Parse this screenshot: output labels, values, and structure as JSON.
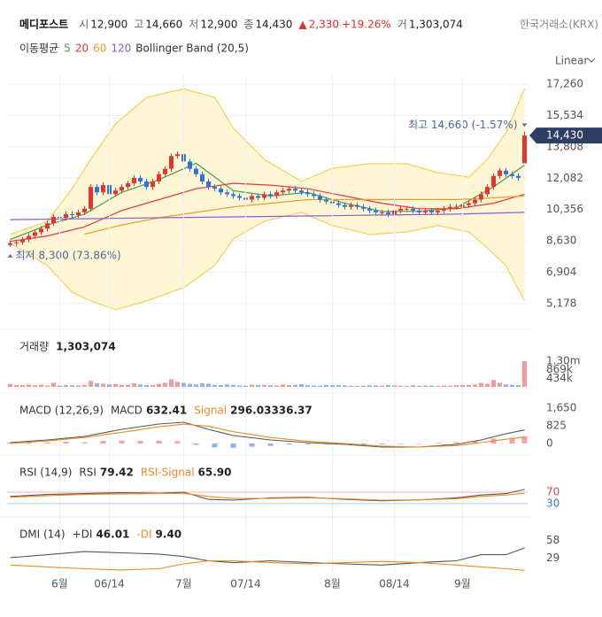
{
  "header": {
    "name": "메디포스트",
    "quotes": [
      {
        "label": "시",
        "value": "12,900"
      },
      {
        "label": "고",
        "value": "14,660"
      },
      {
        "label": "저",
        "value": "12,900"
      },
      {
        "label": "종",
        "value": "14,430"
      }
    ],
    "change": {
      "arrow": "▲",
      "value": "2,330",
      "percent": "+19.26%"
    },
    "volume": {
      "label": "거",
      "value": "1,303,074"
    },
    "exchange": "한국거래소(KRX)"
  },
  "chart_data": [
    {
      "type": "candlestick",
      "scale": "Linear",
      "grid": true,
      "legend_title": "이동평균",
      "xlim": [
        -0.5,
        83.5
      ],
      "xticks": [
        {
          "value": 8,
          "label": "6월"
        },
        {
          "value": 16,
          "label": "06/14"
        },
        {
          "value": 28,
          "label": "7월"
        },
        {
          "value": 38,
          "label": "07/14"
        },
        {
          "value": 52,
          "label": "8월"
        },
        {
          "value": 62,
          "label": "08/14"
        },
        {
          "value": 73,
          "label": "9월"
        }
      ],
      "ylim": [
        4100,
        17750
      ],
      "yticks": [
        {
          "value": 17260,
          "label": "17,260"
        },
        {
          "value": 15534,
          "label": "15,534"
        },
        {
          "value": 13808,
          "label": "13,808"
        },
        {
          "value": 12082,
          "label": "12,082"
        },
        {
          "value": 10356,
          "label": "10,356"
        },
        {
          "value": 8630,
          "label": "8,630"
        },
        {
          "value": 6904,
          "label": "6,904"
        },
        {
          "value": 5178,
          "label": "5,178"
        }
      ],
      "up_color": "#e8342e",
      "down_color": "#2f73d9",
      "open": [
        8400,
        8500,
        8550,
        8700,
        8900,
        9100,
        9300,
        9600,
        9950,
        9900,
        10100,
        10050,
        10200,
        10400,
        11600,
        11300,
        11700,
        11200,
        11400,
        11600,
        11800,
        12100,
        11900,
        11600,
        11900,
        12300,
        12600,
        13300,
        13400,
        13000,
        12600,
        12300,
        11900,
        11600,
        11500,
        11300,
        11200,
        11100,
        11000,
        10900,
        11100,
        11000,
        11200,
        11100,
        11300,
        11400,
        11500,
        11400,
        11300,
        11200,
        11100,
        10900,
        10800,
        10700,
        10600,
        10500,
        10600,
        10500,
        10400,
        10300,
        10200,
        10200,
        10100,
        10300,
        10400,
        10400,
        10300,
        10200,
        10300,
        10200,
        10300,
        10400,
        10500,
        10500,
        10600,
        10700,
        10900,
        11200,
        11600,
        12200,
        12500,
        12300,
        12200,
        12900
      ],
      "high": [
        8650,
        8700,
        8850,
        9050,
        9250,
        9450,
        9750,
        10100,
        10100,
        10250,
        10250,
        10350,
        10550,
        11750,
        11750,
        11850,
        11850,
        11550,
        11750,
        11950,
        12250,
        12250,
        12050,
        12050,
        12450,
        12750,
        13450,
        13550,
        13550,
        13150,
        12750,
        12450,
        12050,
        11750,
        11650,
        11450,
        11350,
        11250,
        11150,
        11250,
        11250,
        11350,
        11350,
        11450,
        11550,
        11650,
        11650,
        11550,
        11450,
        11350,
        11250,
        11050,
        10950,
        10850,
        10750,
        10750,
        10750,
        10650,
        10550,
        10450,
        10350,
        10350,
        10450,
        10550,
        10550,
        10550,
        10450,
        10450,
        10450,
        10450,
        10550,
        10650,
        10650,
        10750,
        10850,
        11050,
        11350,
        11750,
        12350,
        12650,
        12650,
        12450,
        12350,
        14660
      ],
      "low": [
        8300,
        8350,
        8400,
        8550,
        8750,
        8950,
        9150,
        9450,
        9750,
        9750,
        9900,
        9900,
        10050,
        10250,
        11150,
        11150,
        11050,
        11050,
        11250,
        11450,
        11650,
        11750,
        11450,
        11450,
        11750,
        12150,
        12450,
        13150,
        12850,
        12450,
        12150,
        11750,
        11450,
        11350,
        11150,
        11050,
        10950,
        10850,
        10750,
        10750,
        10850,
        10850,
        10950,
        10950,
        11150,
        11250,
        11250,
        11150,
        11050,
        10950,
        10750,
        10650,
        10550,
        10450,
        10350,
        10350,
        10350,
        10250,
        10150,
        10050,
        10050,
        9950,
        9950,
        10150,
        10250,
        10150,
        10050,
        10050,
        10050,
        10050,
        10150,
        10250,
        10350,
        10350,
        10450,
        10550,
        10750,
        11050,
        11450,
        12050,
        12150,
        12050,
        11950,
        12900
      ],
      "close": [
        8500,
        8550,
        8700,
        8900,
        9100,
        9300,
        9600,
        9950,
        9900,
        10100,
        10050,
        10200,
        10400,
        11600,
        11300,
        11700,
        11200,
        11400,
        11600,
        11800,
        12100,
        11900,
        11600,
        11900,
        12300,
        12600,
        13300,
        13400,
        13000,
        12600,
        12300,
        11900,
        11600,
        11500,
        11300,
        11200,
        11100,
        11000,
        10900,
        11100,
        11000,
        11200,
        11100,
        11300,
        11400,
        11500,
        11400,
        11300,
        11200,
        11100,
        10900,
        10800,
        10700,
        10600,
        10500,
        10600,
        10500,
        10400,
        10300,
        10200,
        10200,
        10100,
        10300,
        10400,
        10400,
        10300,
        10200,
        10300,
        10200,
        10300,
        10400,
        10500,
        10500,
        10600,
        10700,
        10900,
        11200,
        11600,
        12200,
        12500,
        12300,
        12200,
        12100,
        14430
      ],
      "series": [
        {
          "name": "5",
          "color": "#43a047",
          "x": [
            0,
            6,
            12,
            18,
            24,
            30,
            36,
            42,
            48,
            54,
            60,
            66,
            72,
            78,
            83
          ],
          "values": [
            8700,
            9500,
            10100,
            11300,
            12000,
            12900,
            11400,
            11100,
            11300,
            10700,
            10250,
            10250,
            10450,
            11600,
            12800
          ]
        },
        {
          "name": "20",
          "color": "#e53935",
          "x": [
            0,
            6,
            12,
            18,
            24,
            30,
            36,
            42,
            48,
            54,
            60,
            66,
            72,
            78,
            83
          ],
          "values": [
            8600,
            8900,
            9400,
            10300,
            10900,
            11500,
            11800,
            11700,
            11500,
            11100,
            10700,
            10400,
            10400,
            10700,
            11200
          ]
        },
        {
          "name": "60",
          "color": "#f59b23",
          "x": [
            12,
            18,
            24,
            30,
            36,
            42,
            48,
            54,
            60,
            66,
            72,
            78,
            83
          ],
          "values": [
            9000,
            9500,
            9900,
            10200,
            10500,
            10700,
            10900,
            10900,
            10900,
            10900,
            10900,
            11000,
            11100
          ]
        },
        {
          "name": "120",
          "color": "#8e5cd9",
          "x": [
            0,
            12,
            24,
            36,
            48,
            60,
            72,
            83
          ],
          "values": [
            9800,
            9850,
            9900,
            9950,
            10000,
            10050,
            10100,
            10200
          ]
        }
      ],
      "band": {
        "name": "Bollinger Band (20,5)",
        "color": "#f7cf5a",
        "fill": "#fff5cf",
        "x": [
          0,
          6,
          10,
          13,
          17,
          22,
          28,
          33,
          36,
          41,
          47,
          52,
          58,
          64,
          69,
          74,
          77,
          80,
          83
        ],
        "upper": [
          8980,
          9700,
          11500,
          13120,
          15070,
          16530,
          17000,
          16530,
          14830,
          13120,
          11900,
          12630,
          12880,
          12880,
          12390,
          12140,
          13120,
          14580,
          17020
        ],
        "lower": [
          8490,
          7270,
          5800,
          5320,
          4840,
          5320,
          6050,
          7270,
          8740,
          9710,
          10200,
          9470,
          8980,
          9120,
          9470,
          9120,
          8250,
          7270,
          5320
        ]
      },
      "high_label": "최고 14,660 (-1.57%)",
      "low_label": "최저 8,300 (73.86%)",
      "last_price": {
        "value": 14430,
        "label": "14,430"
      }
    },
    {
      "type": "bar",
      "title": "거래량",
      "readout": "1,303,074",
      "grid": false,
      "xlim": [
        -0.5,
        83.5
      ],
      "ylim": [
        0,
        2640000
      ],
      "yticks": [
        {
          "value": 1300000,
          "label": "1.30m"
        },
        {
          "value": 869000,
          "label": "869k"
        },
        {
          "value": 434000,
          "label": "434k"
        }
      ],
      "up_color": "#f49a9a",
      "down_color": "#8fb3ea",
      "values": [
        150000,
        90000,
        100000,
        120000,
        80000,
        110000,
        70000,
        200000,
        60000,
        90000,
        80000,
        70000,
        100000,
        300000,
        180000,
        160000,
        120000,
        140000,
        100000,
        110000,
        180000,
        120000,
        90000,
        100000,
        150000,
        200000,
        380000,
        250000,
        200000,
        150000,
        120000,
        180000,
        160000,
        100000,
        80000,
        120000,
        100000,
        70000,
        60000,
        110000,
        90000,
        100000,
        80000,
        70000,
        120000,
        90000,
        100000,
        130000,
        80000,
        70000,
        60000,
        100000,
        90000,
        80000,
        70000,
        60000,
        50000,
        60000,
        80000,
        70000,
        60000,
        90000,
        70000,
        60000,
        50000,
        80000,
        60000,
        70000,
        60000,
        50000,
        70000,
        60000,
        80000,
        90000,
        100000,
        120000,
        200000,
        150000,
        350000,
        200000,
        120000,
        100000,
        90000,
        1303074
      ]
    },
    {
      "type": "line",
      "title": "MACD (12,26,9)",
      "grid": false,
      "xlim": [
        -0.5,
        83.5
      ],
      "ylim": [
        -371,
        2104
      ],
      "yticks": [
        {
          "value": 1650,
          "label": "1,650"
        },
        825,
        0
      ],
      "series": [
        {
          "name": "MACD",
          "readout": "632.41",
          "color": "#555555",
          "x": [
            0,
            6,
            12,
            18,
            24,
            28,
            32,
            36,
            42,
            48,
            54,
            60,
            66,
            72,
            76,
            80,
            83
          ],
          "values": [
            41,
            165,
            330,
            660,
            908,
            990,
            660,
            371,
            165,
            41,
            -41,
            -165,
            -165,
            -41,
            165,
            454,
            632.41
          ]
        },
        {
          "name": "Signal",
          "readout": "296.03",
          "color": "#f08a24",
          "x": [
            0,
            6,
            12,
            18,
            24,
            28,
            32,
            36,
            42,
            48,
            54,
            60,
            66,
            72,
            76,
            80,
            83
          ],
          "values": [
            0,
            120,
            280,
            520,
            780,
            900,
            800,
            550,
            280,
            100,
            0,
            -120,
            -160,
            -100,
            40,
            200,
            296.03
          ]
        }
      ],
      "histogram": {
        "readout": "336.37",
        "up_color": "#f7a1a1",
        "down_color": "#8fb3ea",
        "x": [
          0,
          3,
          6,
          9,
          12,
          15,
          18,
          21,
          24,
          27,
          30,
          33,
          36,
          39,
          42,
          45,
          48,
          51,
          54,
          57,
          60,
          63,
          66,
          69,
          72,
          75,
          78,
          81,
          83
        ],
        "values": [
          40,
          60,
          50,
          80,
          60,
          120,
          140,
          120,
          130,
          110,
          -60,
          -180,
          -200,
          -150,
          -110,
          -50,
          -40,
          -30,
          -40,
          -45,
          -40,
          -20,
          -10,
          30,
          60,
          120,
          230,
          260,
          336.37
        ]
      }
    },
    {
      "type": "line",
      "title": "RSI (14,9)",
      "grid": true,
      "xlim": [
        -0.5,
        83.5
      ],
      "ylim": [
        2,
        181
      ],
      "yticks": [
        70,
        30
      ],
      "tick_colors": [
        "#e0464a",
        "#3a78d8"
      ],
      "series": [
        {
          "name": "RSI",
          "readout": "79.42",
          "color": "#555555",
          "x": [
            0,
            6,
            12,
            18,
            24,
            28,
            32,
            36,
            42,
            48,
            54,
            60,
            66,
            72,
            76,
            80,
            83
          ],
          "values": [
            55,
            62,
            65,
            68,
            66,
            70,
            45,
            42,
            50,
            52,
            45,
            40,
            43,
            50,
            60,
            65,
            79.42
          ]
        },
        {
          "name": "RSI-Signal",
          "readout": "65.90",
          "color": "#f08a24",
          "x": [
            0,
            6,
            12,
            18,
            24,
            28,
            32,
            36,
            42,
            48,
            54,
            60,
            66,
            72,
            76,
            80,
            83
          ],
          "values": [
            52,
            58,
            62,
            64,
            65,
            66,
            55,
            48,
            48,
            50,
            47,
            42,
            43,
            47,
            55,
            60,
            65.9
          ]
        }
      ]
    },
    {
      "type": "line",
      "title": "DMI (14)",
      "grid": false,
      "xlim": [
        -0.5,
        83.5
      ],
      "ylim": [
        4,
        88
      ],
      "yticks": [
        58,
        29
      ],
      "series": [
        {
          "name": "+DI",
          "readout": "46.01",
          "color": "#555555",
          "x": [
            0,
            6,
            12,
            18,
            24,
            28,
            32,
            36,
            42,
            48,
            54,
            60,
            66,
            72,
            76,
            80,
            83
          ],
          "values": [
            30,
            35,
            40,
            38,
            36,
            32,
            25,
            22,
            25,
            22,
            20,
            18,
            22,
            25,
            35,
            35,
            46.01
          ]
        },
        {
          "name": "-DI",
          "readout": "9.40",
          "color": "#f08a24",
          "x": [
            0,
            6,
            12,
            18,
            24,
            28,
            32,
            36,
            42,
            48,
            54,
            60,
            66,
            72,
            76,
            80,
            83
          ],
          "values": [
            18,
            15,
            12,
            10,
            12,
            20,
            25,
            25,
            22,
            20,
            22,
            24,
            22,
            18,
            15,
            12,
            9.4
          ]
        }
      ]
    }
  ]
}
